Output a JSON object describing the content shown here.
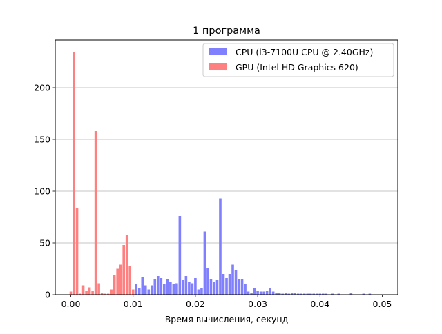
{
  "chart_data": {
    "type": "bar",
    "title": "1 программа",
    "xlabel": "Время вычисления, секунд",
    "ylabel": "",
    "xlim": [
      -0.0025,
      0.0525
    ],
    "ylim": [
      0,
      246
    ],
    "x_ticks": [
      "0.00",
      "0.01",
      "0.02",
      "0.03",
      "0.04",
      "0.05"
    ],
    "y_ticks": [
      "0",
      "50",
      "100",
      "150",
      "200"
    ],
    "grid": "horizontal",
    "legend_position": "top-right",
    "bin_width": 0.0005,
    "series": [
      {
        "name": "CPU (i3-7100U CPU @ 2.40GHz)",
        "color": "#8080ff",
        "x": [
          0.0105,
          0.011,
          0.0115,
          0.012,
          0.0125,
          0.013,
          0.0135,
          0.014,
          0.0145,
          0.015,
          0.0155,
          0.016,
          0.0165,
          0.017,
          0.0175,
          0.018,
          0.0185,
          0.019,
          0.0195,
          0.02,
          0.0205,
          0.021,
          0.0215,
          0.022,
          0.0225,
          0.023,
          0.0235,
          0.024,
          0.0245,
          0.025,
          0.0255,
          0.026,
          0.0265,
          0.027,
          0.0275,
          0.028,
          0.0285,
          0.029,
          0.0295,
          0.03,
          0.0305,
          0.031,
          0.0315,
          0.032,
          0.0325,
          0.033,
          0.0335,
          0.034,
          0.0345,
          0.035,
          0.0355,
          0.036,
          0.0365,
          0.037,
          0.0375,
          0.038,
          0.0385,
          0.039,
          0.0395,
          0.04,
          0.0405,
          0.041,
          0.042,
          0.043,
          0.045,
          0.047,
          0.048
        ],
        "values": [
          10,
          6,
          17,
          9,
          5,
          9,
          15,
          18,
          16,
          10,
          15,
          12,
          10,
          11,
          76,
          14,
          18,
          12,
          11,
          16,
          5,
          6,
          61,
          26,
          15,
          12,
          14,
          93,
          20,
          16,
          20,
          29,
          24,
          15,
          15,
          10,
          3,
          2,
          6,
          4,
          3,
          3,
          4,
          6,
          3,
          2,
          2,
          1,
          2,
          1,
          2,
          2,
          1,
          1,
          1,
          1,
          1,
          1,
          1,
          1,
          1,
          1,
          1,
          1,
          2,
          1,
          1
        ]
      },
      {
        "name": "GPU (Intel HD Graphics 620)",
        "color": "#ff8080",
        "x": [
          0.0,
          0.0005,
          0.001,
          0.0015,
          0.002,
          0.0025,
          0.003,
          0.0035,
          0.004,
          0.0045,
          0.005,
          0.0055,
          0.006,
          0.0065,
          0.007,
          0.0075,
          0.008,
          0.0085,
          0.009,
          0.0095,
          0.01
        ],
        "values": [
          3,
          234,
          84,
          1,
          9,
          4,
          7,
          4,
          158,
          11,
          2,
          1,
          1,
          5,
          19,
          25,
          29,
          48,
          58,
          28,
          5
        ]
      }
    ]
  }
}
